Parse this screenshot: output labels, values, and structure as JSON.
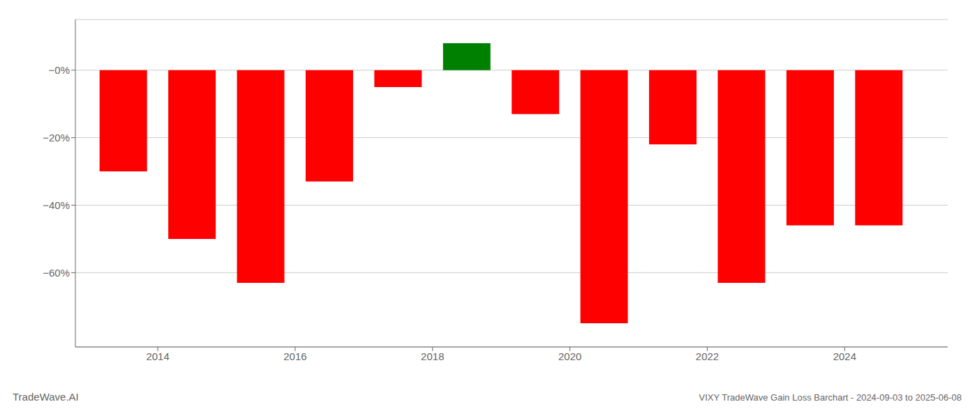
{
  "chart_data": {
    "type": "bar",
    "title": "VIXY TradeWave Gain Loss Barchart - 2024-09-03 to 2025-06-08",
    "annotations": [
      "TradeWave.AI"
    ],
    "x": [
      2013.5,
      2014.5,
      2015.5,
      2016.5,
      2017.5,
      2018.5,
      2019.5,
      2020.5,
      2021.5,
      2022.5,
      2023.5,
      2024.5
    ],
    "values": [
      -30,
      -50,
      -63,
      -33,
      -5,
      8,
      -13,
      -75,
      -22,
      -63,
      -46,
      -46
    ],
    "colors": [
      "#ff0000",
      "#ff0000",
      "#ff0000",
      "#ff0000",
      "#ff0000",
      "#008000",
      "#ff0000",
      "#ff0000",
      "#ff0000",
      "#ff0000",
      "#ff0000",
      "#ff0000"
    ],
    "xlim": [
      2012.8,
      2025.5
    ],
    "xticks": [
      2014,
      2016,
      2018,
      2020,
      2022,
      2024
    ],
    "ylim": [
      -82,
      15
    ],
    "yticks": [
      {
        "value": 0,
        "label": "−0%"
      },
      {
        "value": -20,
        "label": "−20%"
      },
      {
        "value": -40,
        "label": "−40%"
      },
      {
        "value": -60,
        "label": "−60%"
      }
    ],
    "grid": true
  }
}
